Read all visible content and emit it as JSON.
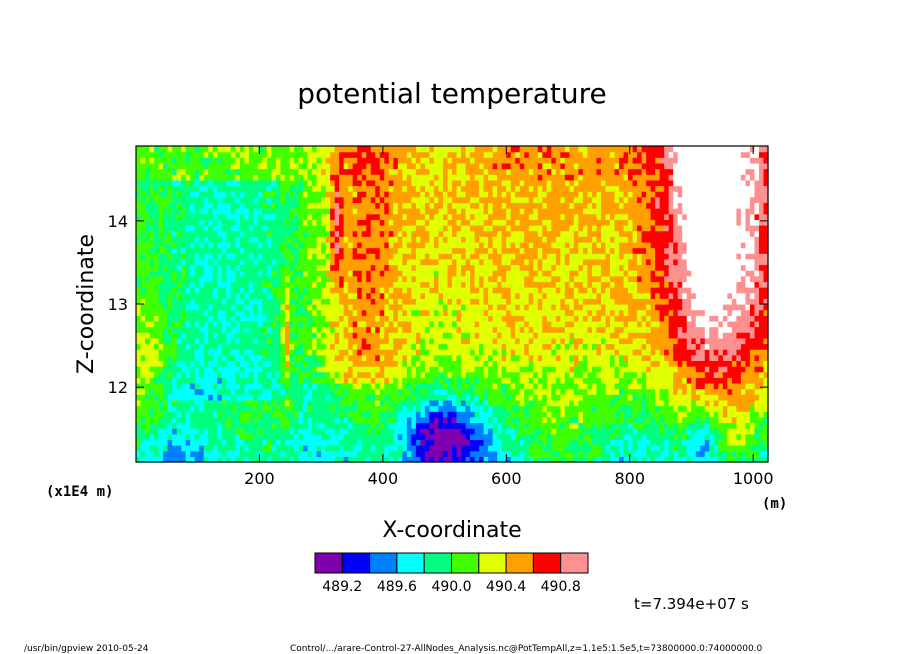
{
  "chart_data": {
    "type": "heatmap",
    "title": "potential temperature",
    "xlabel": "X-coordinate",
    "ylabel": "Z-coordinate",
    "x_units": "(m)",
    "y_units": "(x1E4 m)",
    "xlim": [
      0,
      1024
    ],
    "ylim": [
      11.1,
      14.9
    ],
    "x_ticks": [
      200,
      400,
      600,
      800,
      1000
    ],
    "y_ticks": [
      12,
      13,
      14
    ],
    "legend_placement": "bottom",
    "grid": false,
    "colorbar": {
      "levels": [
        489.0,
        489.2,
        489.4,
        489.6,
        489.8,
        490.0,
        490.2,
        490.4,
        490.6,
        490.8,
        491.0
      ],
      "tick_labels": [
        "489.2",
        "489.6",
        "490.0",
        "490.4",
        "490.8"
      ],
      "colors": [
        "#8000b0",
        "#0000ff",
        "#0080ff",
        "#00ffff",
        "#00ff80",
        "#40ff00",
        "#e0ff00",
        "#ffa000",
        "#ff0000",
        "#ff9090"
      ]
    },
    "annotation": "t=7.394e+07 s"
  },
  "footer": {
    "left": "/usr/bin/gpview   2010-05-24",
    "right": "Control/.../arare-Control-27-AllNodes_Analysis.nc@PotTempAll,z=1.1e5:1.5e5,t=73800000.0:74000000.0"
  }
}
